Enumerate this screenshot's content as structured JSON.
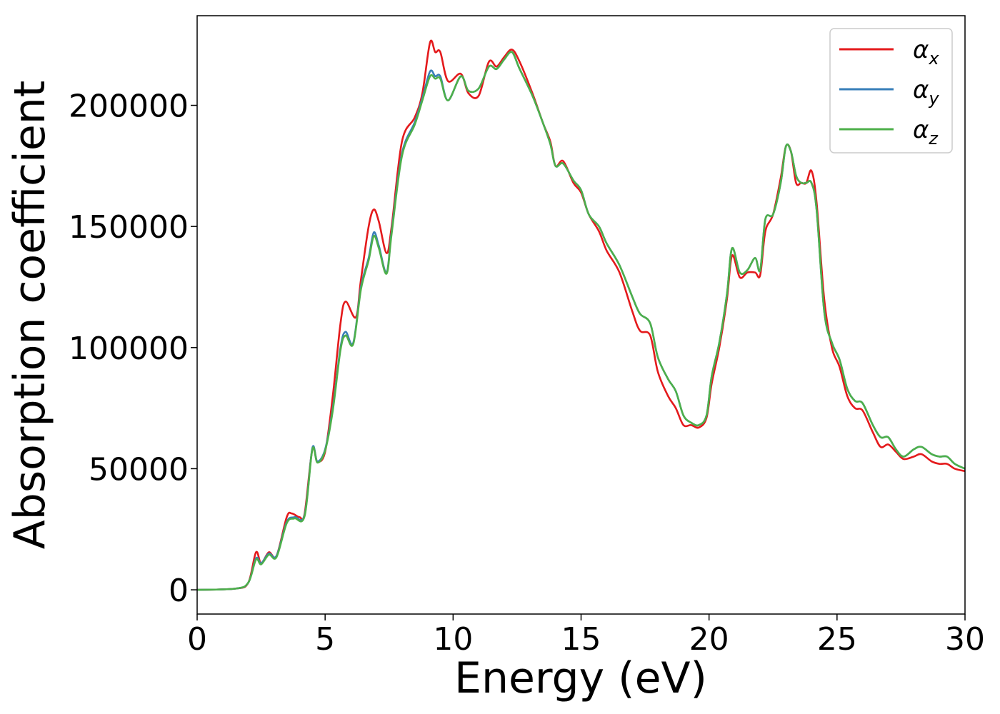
{
  "chart_data": {
    "type": "line",
    "title": "",
    "xlabel": "Energy (eV)",
    "ylabel": "Absorption coefficient",
    "xlim": [
      0,
      30
    ],
    "ylim": [
      -10000,
      237000
    ],
    "xticks": [
      0,
      5,
      10,
      15,
      20,
      25,
      30
    ],
    "xtick_labels": [
      "0",
      "5",
      "10",
      "15",
      "20",
      "25",
      "30"
    ],
    "yticks": [
      0,
      50000,
      100000,
      150000,
      200000
    ],
    "ytick_labels": [
      "0",
      "50000",
      "100000",
      "150000",
      "200000"
    ],
    "grid": false,
    "legend_position": "top-right",
    "series": [
      {
        "name": "α",
        "subscript": "x",
        "color": "#e41a1c",
        "points": [
          [
            0,
            0
          ],
          [
            1.5,
            500
          ],
          [
            2,
            3000
          ],
          [
            2.3,
            15500
          ],
          [
            2.5,
            11000
          ],
          [
            2.8,
            15500
          ],
          [
            3.1,
            14000
          ],
          [
            3.5,
            30000
          ],
          [
            3.7,
            31500
          ],
          [
            4,
            30000
          ],
          [
            4.2,
            31500
          ],
          [
            4.5,
            58000
          ],
          [
            4.7,
            53000
          ],
          [
            5,
            57000
          ],
          [
            5.3,
            80000
          ],
          [
            5.6,
            110000
          ],
          [
            5.8,
            119000
          ],
          [
            6.2,
            112500
          ],
          [
            6.4,
            128000
          ],
          [
            6.7,
            150000
          ],
          [
            6.9,
            157000
          ],
          [
            7.1,
            152000
          ],
          [
            7.4,
            139000
          ],
          [
            7.6,
            150000
          ],
          [
            8,
            185000
          ],
          [
            8.5,
            195000
          ],
          [
            8.8,
            205000
          ],
          [
            9.1,
            226000
          ],
          [
            9.3,
            222000
          ],
          [
            9.5,
            222000
          ],
          [
            9.8,
            210000
          ],
          [
            10.3,
            213000
          ],
          [
            10.6,
            205000
          ],
          [
            11,
            204000
          ],
          [
            11.4,
            218000
          ],
          [
            11.7,
            216000
          ],
          [
            12,
            220000
          ],
          [
            12.3,
            223000
          ],
          [
            12.6,
            218000
          ],
          [
            13.1,
            205000
          ],
          [
            13.5,
            193000
          ],
          [
            13.8,
            185000
          ],
          [
            14,
            175000
          ],
          [
            14.3,
            177000
          ],
          [
            14.7,
            168000
          ],
          [
            15,
            164000
          ],
          [
            15.3,
            155000
          ],
          [
            15.7,
            148000
          ],
          [
            16,
            140000
          ],
          [
            16.5,
            131000
          ],
          [
            17,
            115000
          ],
          [
            17.3,
            107000
          ],
          [
            17.7,
            105000
          ],
          [
            18,
            90000
          ],
          [
            18.4,
            80000
          ],
          [
            18.7,
            75000
          ],
          [
            19,
            68000
          ],
          [
            19.3,
            68000
          ],
          [
            19.6,
            67000
          ],
          [
            19.9,
            71000
          ],
          [
            20.1,
            85000
          ],
          [
            20.4,
            100000
          ],
          [
            20.7,
            120000
          ],
          [
            20.9,
            138000
          ],
          [
            21.2,
            129000
          ],
          [
            21.5,
            131000
          ],
          [
            21.8,
            131000
          ],
          [
            22,
            130000
          ],
          [
            22.2,
            148000
          ],
          [
            22.5,
            155000
          ],
          [
            22.8,
            170000
          ],
          [
            23,
            183000
          ],
          [
            23.2,
            181000
          ],
          [
            23.4,
            168000
          ],
          [
            23.6,
            168000
          ],
          [
            23.8,
            168000
          ],
          [
            24,
            173000
          ],
          [
            24.2,
            160000
          ],
          [
            24.5,
            120000
          ],
          [
            24.8,
            100000
          ],
          [
            25.1,
            92000
          ],
          [
            25.4,
            80000
          ],
          [
            25.7,
            75000
          ],
          [
            26,
            74000
          ],
          [
            26.4,
            65000
          ],
          [
            26.7,
            59000
          ],
          [
            27,
            60000
          ],
          [
            27.3,
            57000
          ],
          [
            27.6,
            54000
          ],
          [
            28,
            55000
          ],
          [
            28.3,
            56000
          ],
          [
            28.7,
            53000
          ],
          [
            29,
            52000
          ],
          [
            29.3,
            52000
          ],
          [
            29.6,
            50000
          ],
          [
            30,
            49000
          ]
        ]
      },
      {
        "name": "α",
        "subscript": "y",
        "color": "#377eb8",
        "points": [
          [
            0,
            0
          ],
          [
            1.5,
            500
          ],
          [
            2,
            3000
          ],
          [
            2.3,
            13000
          ],
          [
            2.5,
            11000
          ],
          [
            2.8,
            15000
          ],
          [
            3.1,
            14000
          ],
          [
            3.5,
            28000
          ],
          [
            3.8,
            30000
          ],
          [
            4.2,
            31000
          ],
          [
            4.5,
            58500
          ],
          [
            4.7,
            53000
          ],
          [
            5,
            58000
          ],
          [
            5.3,
            75000
          ],
          [
            5.6,
            100000
          ],
          [
            5.8,
            106500
          ],
          [
            6.1,
            102000
          ],
          [
            6.4,
            125000
          ],
          [
            6.7,
            137000
          ],
          [
            6.9,
            147500
          ],
          [
            7.1,
            142000
          ],
          [
            7.4,
            131000
          ],
          [
            7.6,
            148000
          ],
          [
            8,
            180000
          ],
          [
            8.5,
            193000
          ],
          [
            8.8,
            203000
          ],
          [
            9.1,
            214000
          ],
          [
            9.3,
            212000
          ],
          [
            9.5,
            212000
          ],
          [
            9.8,
            202000
          ],
          [
            10.3,
            212000
          ],
          [
            10.6,
            206000
          ],
          [
            11,
            207000
          ],
          [
            11.4,
            216000
          ],
          [
            11.7,
            215000
          ],
          [
            12,
            219000
          ],
          [
            12.3,
            222000
          ],
          [
            12.6,
            215000
          ],
          [
            13.1,
            204000
          ],
          [
            13.5,
            193000
          ],
          [
            13.8,
            184000
          ],
          [
            14,
            175000
          ],
          [
            14.3,
            176000
          ],
          [
            14.7,
            169000
          ],
          [
            15,
            165000
          ],
          [
            15.3,
            155000
          ],
          [
            15.7,
            150000
          ],
          [
            16,
            143000
          ],
          [
            16.5,
            134000
          ],
          [
            17,
            121000
          ],
          [
            17.3,
            114000
          ],
          [
            17.7,
            110000
          ],
          [
            18,
            96000
          ],
          [
            18.4,
            87000
          ],
          [
            18.7,
            82000
          ],
          [
            19,
            72000
          ],
          [
            19.3,
            69000
          ],
          [
            19.6,
            68000
          ],
          [
            19.9,
            72000
          ],
          [
            20.1,
            88000
          ],
          [
            20.4,
            102000
          ],
          [
            20.7,
            122000
          ],
          [
            20.9,
            141000
          ],
          [
            21.2,
            131000
          ],
          [
            21.5,
            132000
          ],
          [
            21.8,
            137000
          ],
          [
            22,
            132000
          ],
          [
            22.2,
            153000
          ],
          [
            22.5,
            155000
          ],
          [
            22.8,
            168000
          ],
          [
            23,
            183000
          ],
          [
            23.2,
            181000
          ],
          [
            23.4,
            171000
          ],
          [
            23.6,
            168000
          ],
          [
            23.8,
            168000
          ],
          [
            24,
            168000
          ],
          [
            24.2,
            157000
          ],
          [
            24.5,
            115000
          ],
          [
            24.8,
            102000
          ],
          [
            25.1,
            95000
          ],
          [
            25.4,
            83000
          ],
          [
            25.7,
            78000
          ],
          [
            26,
            77000
          ],
          [
            26.4,
            68000
          ],
          [
            26.7,
            63000
          ],
          [
            27,
            63000
          ],
          [
            27.3,
            58000
          ],
          [
            27.6,
            55000
          ],
          [
            28,
            58000
          ],
          [
            28.3,
            59000
          ],
          [
            28.7,
            56000
          ],
          [
            29,
            55000
          ],
          [
            29.3,
            55000
          ],
          [
            29.6,
            52000
          ],
          [
            30,
            50000
          ]
        ]
      },
      {
        "name": "α",
        "subscript": "z",
        "color": "#4daf4a",
        "points": [
          [
            0,
            0
          ],
          [
            1.5,
            500
          ],
          [
            2,
            3000
          ],
          [
            2.3,
            12500
          ],
          [
            2.5,
            10500
          ],
          [
            2.8,
            14500
          ],
          [
            3.1,
            13500
          ],
          [
            3.5,
            27500
          ],
          [
            3.8,
            29500
          ],
          [
            4.2,
            30500
          ],
          [
            4.5,
            58000
          ],
          [
            4.7,
            52500
          ],
          [
            5,
            57500
          ],
          [
            5.3,
            74000
          ],
          [
            5.6,
            99000
          ],
          [
            5.8,
            105000
          ],
          [
            6.1,
            101500
          ],
          [
            6.4,
            124000
          ],
          [
            6.7,
            136000
          ],
          [
            6.9,
            146000
          ],
          [
            7.1,
            141000
          ],
          [
            7.4,
            130500
          ],
          [
            7.6,
            147000
          ],
          [
            8,
            179000
          ],
          [
            8.5,
            192000
          ],
          [
            8.8,
            202000
          ],
          [
            9.1,
            212000
          ],
          [
            9.3,
            211000
          ],
          [
            9.5,
            211000
          ],
          [
            9.8,
            202000
          ],
          [
            10.3,
            212000
          ],
          [
            10.6,
            206000
          ],
          [
            11,
            207000
          ],
          [
            11.4,
            216000
          ],
          [
            11.7,
            215000
          ],
          [
            12,
            219000
          ],
          [
            12.3,
            222000
          ],
          [
            12.6,
            215000
          ],
          [
            13.1,
            204000
          ],
          [
            13.5,
            193000
          ],
          [
            13.8,
            184000
          ],
          [
            14,
            175000
          ],
          [
            14.3,
            176000
          ],
          [
            14.7,
            169000
          ],
          [
            15,
            165000
          ],
          [
            15.3,
            155000
          ],
          [
            15.7,
            150000
          ],
          [
            16,
            143000
          ],
          [
            16.5,
            134000
          ],
          [
            17,
            121000
          ],
          [
            17.3,
            114000
          ],
          [
            17.7,
            110000
          ],
          [
            18,
            96000
          ],
          [
            18.4,
            87000
          ],
          [
            18.7,
            82000
          ],
          [
            19,
            72000
          ],
          [
            19.3,
            69000
          ],
          [
            19.6,
            68000
          ],
          [
            19.9,
            72000
          ],
          [
            20.1,
            88000
          ],
          [
            20.4,
            102000
          ],
          [
            20.7,
            122000
          ],
          [
            20.9,
            141000
          ],
          [
            21.2,
            131000
          ],
          [
            21.5,
            132000
          ],
          [
            21.8,
            137000
          ],
          [
            22,
            132000
          ],
          [
            22.2,
            153000
          ],
          [
            22.5,
            155000
          ],
          [
            22.8,
            168000
          ],
          [
            23,
            183000
          ],
          [
            23.2,
            181000
          ],
          [
            23.4,
            171000
          ],
          [
            23.6,
            168000
          ],
          [
            23.8,
            168000
          ],
          [
            24,
            168000
          ],
          [
            24.2,
            157000
          ],
          [
            24.5,
            115000
          ],
          [
            24.8,
            102000
          ],
          [
            25.1,
            95000
          ],
          [
            25.4,
            83000
          ],
          [
            25.7,
            78000
          ],
          [
            26,
            77000
          ],
          [
            26.4,
            68000
          ],
          [
            26.7,
            63000
          ],
          [
            27,
            63000
          ],
          [
            27.3,
            58000
          ],
          [
            27.6,
            55000
          ],
          [
            28,
            58000
          ],
          [
            28.3,
            59000
          ],
          [
            28.7,
            56000
          ],
          [
            29,
            55000
          ],
          [
            29.3,
            55000
          ],
          [
            29.6,
            52000
          ],
          [
            30,
            50000
          ]
        ]
      }
    ]
  }
}
